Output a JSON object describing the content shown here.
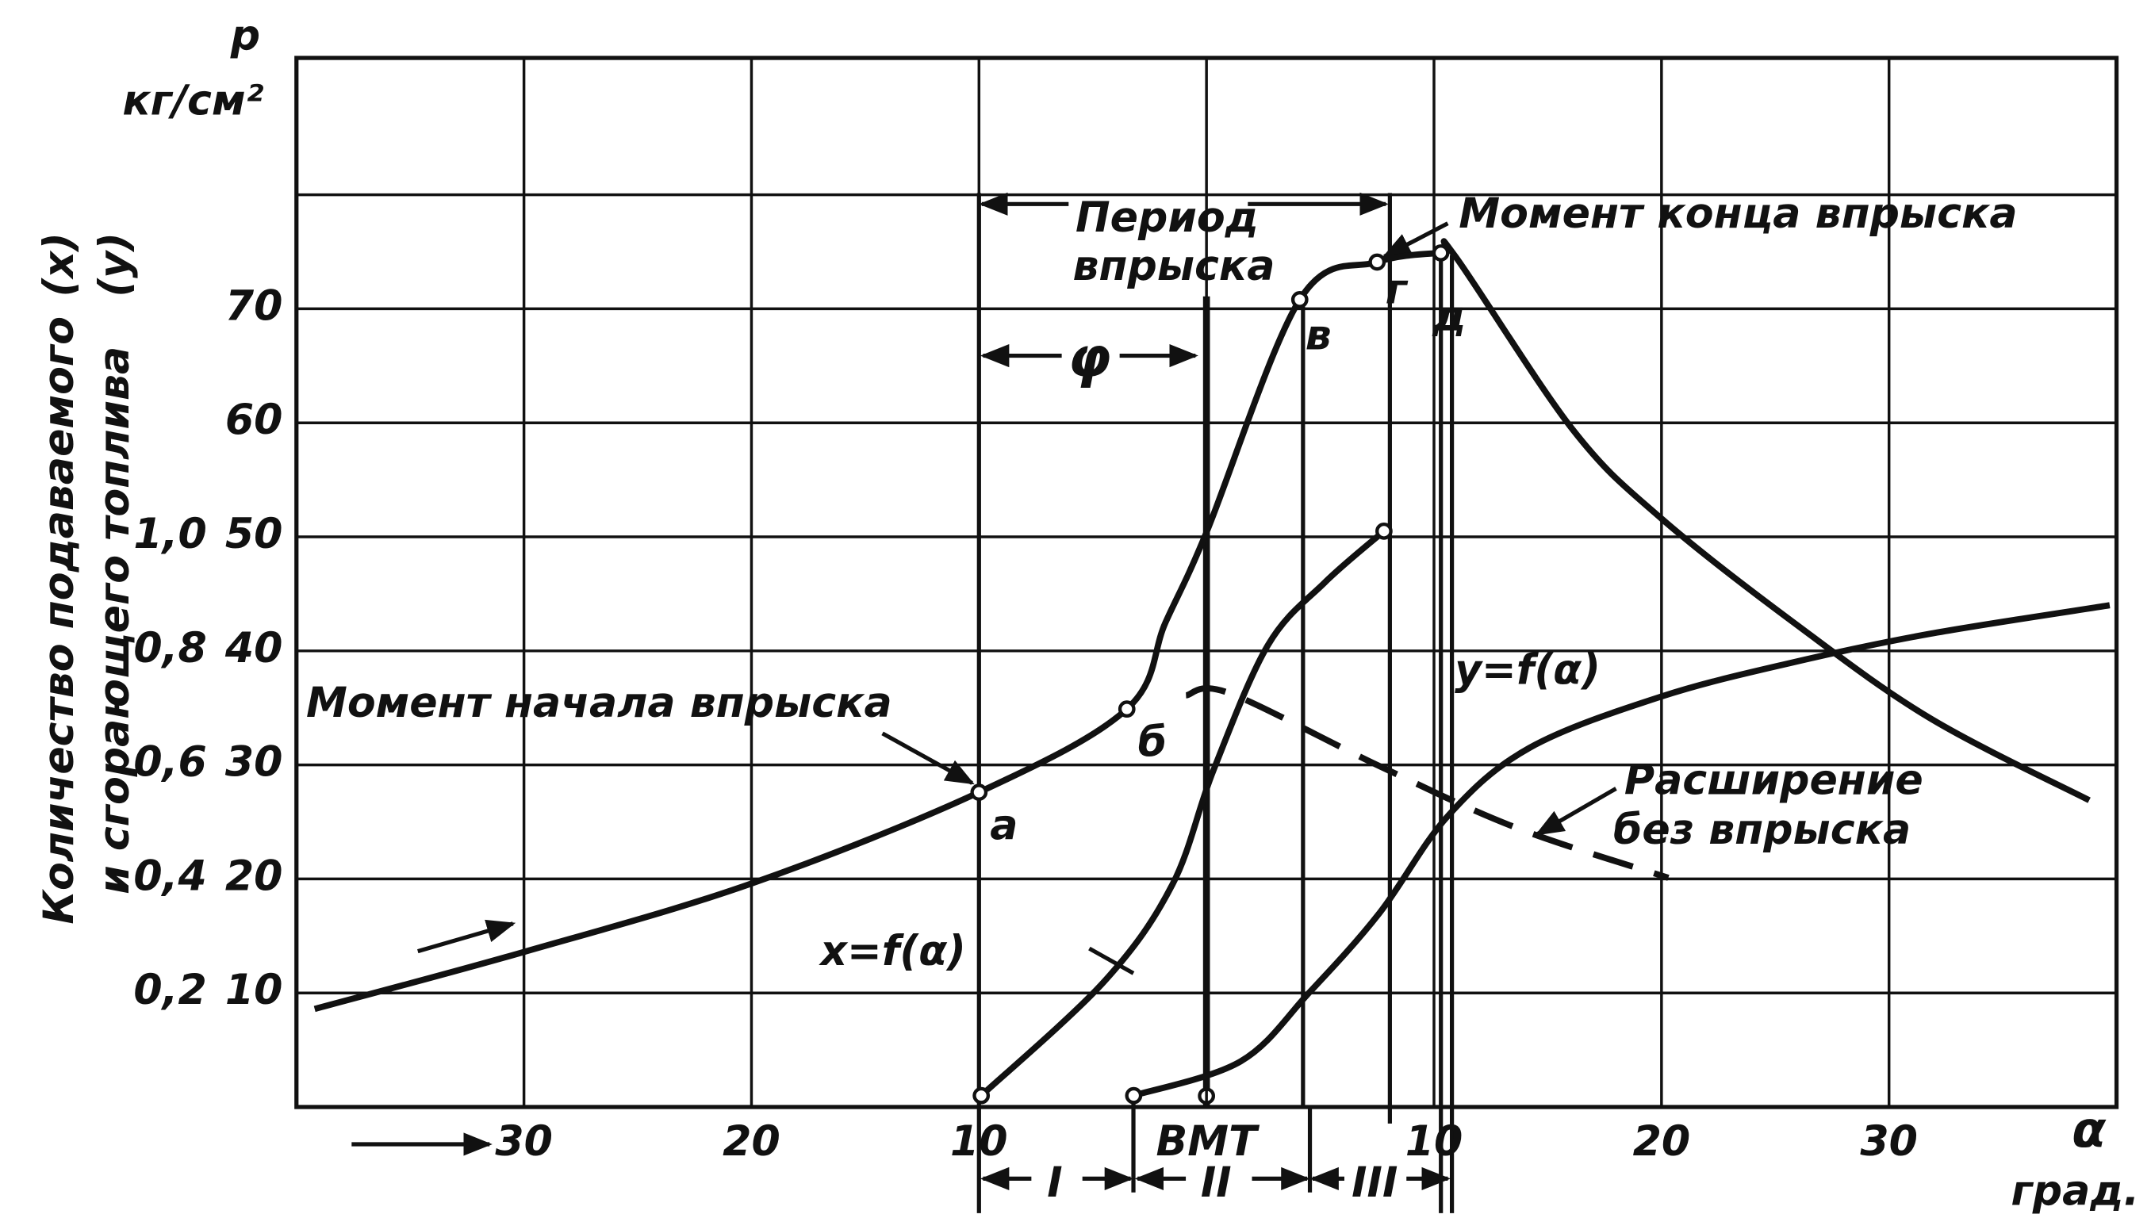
{
  "chart_data": {
    "type": "line",
    "y_label": "p",
    "y_unit": "кг/см²",
    "x_label": "α",
    "x_unit": "град.",
    "y2_label": [
      "Количество подаваемого",
      "и сгорающего топлива"
    ],
    "y2_label_marks": [
      "(x)",
      "(y)"
    ],
    "xlim": [
      -40,
      40
    ],
    "xticks": [
      {
        "value": -30,
        "label": "30"
      },
      {
        "value": -20,
        "label": "20"
      },
      {
        "value": -10,
        "label": "10"
      },
      {
        "value": 0,
        "label": "ВМТ"
      },
      10,
      20,
      30
    ],
    "ylim": [
      0,
      92
    ],
    "yticks": [
      10,
      20,
      30,
      40,
      50,
      60,
      70,
      {
        "value": 80,
        "label": null
      }
    ],
    "y2lim": [
      0,
      1.84
    ],
    "y2ticks": [
      {
        "value": 0.2,
        "label": "0,2"
      },
      {
        "value": 0.4,
        "label": "0,4"
      },
      {
        "value": 0.6,
        "label": "0,6"
      },
      {
        "value": 0.8,
        "label": "0,8"
      },
      {
        "value": 1.0,
        "label": "1,0"
      }
    ],
    "grid": true,
    "series": [
      {
        "color": "#111",
        "style": "solid",
        "x": [
          -39.2,
          -30,
          -20,
          -10,
          -3.5,
          -1.8,
          0,
          4.1,
          7.5,
          10.3,
          10.9,
          16.1,
          20,
          25.8,
          31.8,
          38.8
        ],
        "values": [
          8.6,
          13.6,
          19.6,
          27.6,
          34.9,
          42.5,
          50.4,
          70.8,
          74.1,
          74.9,
          74.7,
          59.4,
          51.6,
          42.5,
          34.1,
          26.9
        ]
      },
      {
        "color": "#111",
        "style": "dashed",
        "x": [
          -0.9,
          1,
          7.6,
          13.6,
          20.3
        ],
        "values": [
          36.1,
          36.3,
          29.9,
          24.5,
          20.1
        ]
      },
      {
        "color": "#111",
        "style": "solid",
        "axis": "y2",
        "x": [
          -9.9,
          -4.5,
          -1.5,
          0.3,
          2.7,
          5.2,
          7.8
        ],
        "values": [
          0.02,
          0.22,
          0.39,
          0.59,
          0.81,
          0.92,
          1.01
        ]
      },
      {
        "color": "#111",
        "style": "solid",
        "axis": "y2",
        "x": [
          -3.2,
          1.5,
          4.5,
          7.6,
          10.6,
          14.2,
          20,
          25.8,
          31.8,
          39.7
        ],
        "values": [
          0.02,
          0.08,
          0.2,
          0.34,
          0.51,
          0.63,
          0.72,
          0.78,
          0.83,
          0.88
        ]
      }
    ],
    "key_points": {
      "labels": [
        "а",
        "б",
        "в",
        "г",
        "д"
      ],
      "x": [
        -10,
        -3.5,
        4.1,
        7.5,
        10.3
      ],
      "values": [
        27.6,
        34.9,
        70.8,
        74.1,
        74.9
      ]
    },
    "annotations": [
      "Период",
      "впрыска",
      "Момент конца впрыска",
      "φ",
      "Момент начала впрыска",
      "y=f(α)",
      "x=f(α)",
      "Расширение",
      "без впрыска",
      "I",
      "II",
      "III"
    ]
  }
}
